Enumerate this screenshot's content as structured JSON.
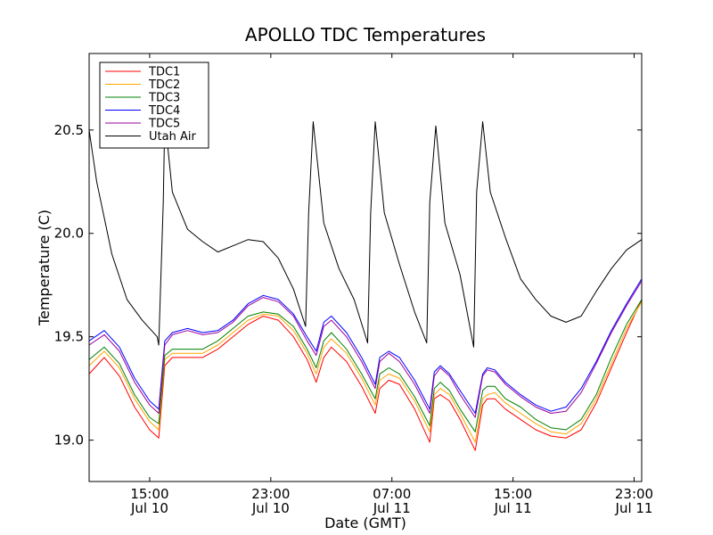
{
  "chart_data": {
    "type": "line",
    "title": "APOLLO TDC Temperatures",
    "xlabel": "Date (GMT)",
    "ylabel": "Temperature (C)",
    "xlim": [
      11.0,
      47.5
    ],
    "ylim": [
      18.8,
      20.87
    ],
    "x_ticks": [
      {
        "value": 15,
        "line1": "15:00",
        "line2": "Jul 10"
      },
      {
        "value": 23,
        "line1": "23:00",
        "line2": "Jul 10"
      },
      {
        "value": 31,
        "line1": "07:00",
        "line2": "Jul 11"
      },
      {
        "value": 39,
        "line1": "15:00",
        "line2": "Jul 11"
      },
      {
        "value": 47,
        "line1": "23:00",
        "line2": "Jul 11"
      }
    ],
    "y_ticks": [
      {
        "value": 19.0,
        "label": "19.0"
      },
      {
        "value": 19.5,
        "label": "19.5"
      },
      {
        "value": 20.0,
        "label": "20.0"
      },
      {
        "value": 20.5,
        "label": "20.5"
      }
    ],
    "legend_position": "top-left",
    "series": [
      {
        "name": "TDC1",
        "color": "#ff0000",
        "x": [
          11.0,
          12.0,
          13.0,
          14.0,
          15.0,
          15.6,
          16.0,
          16.5,
          17.5,
          18.5,
          19.5,
          20.5,
          21.5,
          22.5,
          23.5,
          24.5,
          25.4,
          26.0,
          26.5,
          27.0,
          28.0,
          29.0,
          29.9,
          30.2,
          30.8,
          31.5,
          32.5,
          33.5,
          33.8,
          34.2,
          34.8,
          35.5,
          36.5,
          37.0,
          37.3,
          37.8,
          38.5,
          39.5,
          40.5,
          41.5,
          42.5,
          43.5,
          44.5,
          45.5,
          46.5,
          47.5
        ],
        "y": [
          19.32,
          19.4,
          19.31,
          19.16,
          19.05,
          19.01,
          19.36,
          19.4,
          19.4,
          19.4,
          19.44,
          19.5,
          19.56,
          19.6,
          19.58,
          19.5,
          19.39,
          19.28,
          19.4,
          19.45,
          19.38,
          19.26,
          19.13,
          19.25,
          19.29,
          19.27,
          19.15,
          18.99,
          19.2,
          19.22,
          19.19,
          19.1,
          18.95,
          19.17,
          19.2,
          19.2,
          19.15,
          19.1,
          19.05,
          19.02,
          19.01,
          19.05,
          19.18,
          19.35,
          19.52,
          19.68
        ]
      },
      {
        "name": "TDC2",
        "color": "#ffa500",
        "x": [
          11.0,
          12.0,
          13.0,
          14.0,
          15.0,
          15.6,
          16.0,
          16.5,
          17.5,
          18.5,
          19.5,
          20.5,
          21.5,
          22.5,
          23.5,
          24.5,
          25.4,
          26.0,
          26.5,
          27.0,
          28.0,
          29.0,
          29.9,
          30.2,
          30.8,
          31.5,
          32.5,
          33.5,
          33.8,
          34.2,
          34.8,
          35.5,
          36.5,
          37.0,
          37.3,
          37.8,
          38.5,
          39.5,
          40.5,
          41.5,
          42.5,
          43.5,
          44.5,
          45.5,
          46.5,
          47.5
        ],
        "y": [
          19.36,
          19.43,
          19.35,
          19.2,
          19.09,
          19.05,
          19.39,
          19.42,
          19.42,
          19.42,
          19.46,
          19.52,
          19.58,
          19.61,
          19.6,
          19.53,
          19.42,
          19.32,
          19.45,
          19.49,
          19.42,
          19.3,
          19.17,
          19.29,
          19.32,
          19.3,
          19.19,
          19.04,
          19.22,
          19.25,
          19.22,
          19.13,
          18.99,
          19.2,
          19.22,
          19.23,
          19.18,
          19.13,
          19.08,
          19.04,
          19.03,
          19.08,
          19.2,
          19.37,
          19.54,
          19.67
        ]
      },
      {
        "name": "TDC3",
        "color": "#008000",
        "x": [
          11.0,
          12.0,
          13.0,
          14.0,
          15.0,
          15.6,
          16.0,
          16.5,
          17.5,
          18.5,
          19.5,
          20.5,
          21.5,
          22.5,
          23.5,
          24.5,
          25.4,
          26.0,
          26.5,
          27.0,
          28.0,
          29.0,
          29.9,
          30.2,
          30.8,
          31.5,
          32.5,
          33.5,
          33.8,
          34.2,
          34.8,
          35.5,
          36.5,
          37.0,
          37.3,
          37.8,
          38.5,
          39.5,
          40.5,
          41.5,
          42.5,
          43.5,
          44.5,
          45.5,
          46.5,
          47.5
        ],
        "y": [
          19.39,
          19.45,
          19.37,
          19.22,
          19.11,
          19.08,
          19.41,
          19.44,
          19.44,
          19.44,
          19.48,
          19.54,
          19.6,
          19.62,
          19.61,
          19.55,
          19.44,
          19.35,
          19.48,
          19.52,
          19.44,
          19.32,
          19.2,
          19.32,
          19.35,
          19.32,
          19.21,
          19.07,
          19.25,
          19.28,
          19.24,
          19.15,
          19.04,
          19.24,
          19.26,
          19.26,
          19.2,
          19.16,
          19.1,
          19.06,
          19.05,
          19.1,
          19.22,
          19.4,
          19.56,
          19.68
        ]
      },
      {
        "name": "TDC4",
        "color": "#0000ff",
        "x": [
          11.0,
          12.0,
          13.0,
          14.0,
          15.0,
          15.6,
          16.0,
          16.5,
          17.5,
          18.5,
          19.5,
          20.5,
          21.5,
          22.5,
          23.5,
          24.5,
          25.4,
          26.0,
          26.5,
          27.0,
          28.0,
          29.0,
          29.9,
          30.2,
          30.8,
          31.5,
          32.5,
          33.5,
          33.8,
          34.2,
          34.8,
          35.5,
          36.5,
          37.0,
          37.3,
          37.8,
          38.5,
          39.5,
          40.5,
          41.5,
          42.5,
          43.5,
          44.5,
          45.5,
          46.5,
          47.5
        ],
        "y": [
          19.48,
          19.53,
          19.45,
          19.3,
          19.19,
          19.15,
          19.48,
          19.52,
          19.54,
          19.52,
          19.53,
          19.58,
          19.66,
          19.7,
          19.68,
          19.61,
          19.5,
          19.43,
          19.57,
          19.6,
          19.52,
          19.4,
          19.27,
          19.4,
          19.43,
          19.4,
          19.29,
          19.15,
          19.33,
          19.36,
          19.32,
          19.24,
          19.13,
          19.32,
          19.35,
          19.34,
          19.28,
          19.22,
          19.17,
          19.14,
          19.16,
          19.25,
          19.38,
          19.53,
          19.66,
          19.78
        ]
      },
      {
        "name": "TDC5",
        "color": "#9b009b",
        "x": [
          11.0,
          12.0,
          13.0,
          14.0,
          15.0,
          15.6,
          16.0,
          16.5,
          17.5,
          18.5,
          19.5,
          20.5,
          21.5,
          22.5,
          23.5,
          24.5,
          25.4,
          26.0,
          26.5,
          27.0,
          28.0,
          29.0,
          29.9,
          30.2,
          30.8,
          31.5,
          32.5,
          33.5,
          33.8,
          34.2,
          34.8,
          35.5,
          36.5,
          37.0,
          37.3,
          37.8,
          38.5,
          39.5,
          40.5,
          41.5,
          42.5,
          43.5,
          44.5,
          45.5,
          46.5,
          47.5
        ],
        "y": [
          19.46,
          19.51,
          19.43,
          19.28,
          19.17,
          19.13,
          19.46,
          19.51,
          19.53,
          19.51,
          19.52,
          19.57,
          19.65,
          19.69,
          19.67,
          19.6,
          19.48,
          19.41,
          19.55,
          19.58,
          19.5,
          19.38,
          19.25,
          19.38,
          19.42,
          19.38,
          19.27,
          19.13,
          19.31,
          19.35,
          19.31,
          19.22,
          19.11,
          19.31,
          19.34,
          19.33,
          19.27,
          19.21,
          19.16,
          19.13,
          19.14,
          19.23,
          19.37,
          19.52,
          19.65,
          19.77
        ]
      },
      {
        "name": "Utah Air",
        "color": "#000000",
        "x": [
          11.0,
          11.5,
          12.5,
          13.5,
          14.5,
          15.5,
          15.6,
          15.9,
          16.0,
          16.5,
          17.5,
          18.5,
          19.5,
          20.5,
          21.5,
          22.5,
          23.5,
          24.5,
          25.3,
          25.5,
          25.8,
          26.5,
          27.5,
          28.5,
          29.4,
          29.6,
          29.9,
          30.5,
          31.5,
          32.5,
          33.3,
          33.5,
          33.9,
          34.5,
          35.5,
          36.4,
          36.6,
          37.0,
          37.5,
          38.5,
          39.5,
          40.5,
          41.5,
          42.5,
          43.5,
          44.5,
          45.5,
          46.5,
          47.5
        ],
        "y": [
          20.5,
          20.25,
          19.9,
          19.68,
          19.58,
          19.5,
          19.46,
          20.15,
          20.56,
          20.2,
          20.02,
          19.96,
          19.91,
          19.94,
          19.97,
          19.96,
          19.88,
          19.73,
          19.55,
          20.1,
          20.54,
          20.05,
          19.83,
          19.68,
          19.47,
          20.1,
          20.54,
          20.1,
          19.85,
          19.62,
          19.47,
          20.15,
          20.52,
          20.05,
          19.8,
          19.45,
          20.2,
          20.54,
          20.2,
          19.98,
          19.78,
          19.68,
          19.6,
          19.57,
          19.6,
          19.72,
          19.83,
          19.92,
          19.97
        ]
      }
    ]
  }
}
